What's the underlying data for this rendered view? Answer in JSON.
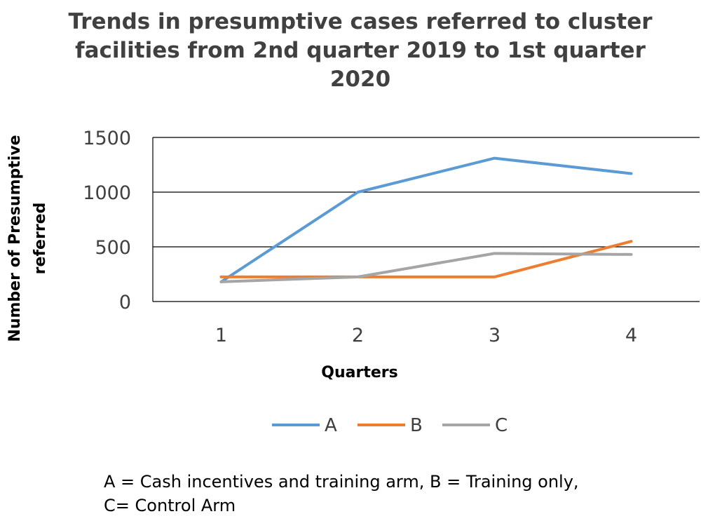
{
  "colors": {
    "A": "#5b9bd5",
    "B": "#ed7d31",
    "C": "#a5a5a5",
    "grid": "#000000",
    "text": "#404040"
  },
  "chart_data": {
    "type": "line",
    "title_lines": [
      "Trends in presumptive cases referred to cluster",
      "facilities from 2nd quarter 2019 to 1st quarter",
      "2020"
    ],
    "xlabel": "Quarters",
    "ylabel_lines": [
      "Number of Presumptive",
      "referred"
    ],
    "categories": [
      "1",
      "2",
      "3",
      "4"
    ],
    "y_ticks": [
      "0",
      "500",
      "1000",
      "1500"
    ],
    "ylim": [
      0,
      1500
    ],
    "grid": true,
    "legend_position": "bottom",
    "series": [
      {
        "name": "A",
        "values": [
          180,
          1000,
          1310,
          1170
        ]
      },
      {
        "name": "B",
        "values": [
          225,
          225,
          225,
          550
        ]
      },
      {
        "name": "C",
        "values": [
          180,
          225,
          440,
          430
        ]
      }
    ]
  },
  "footnote": {
    "line1": "A = Cash incentives and training arm, B = Training only,",
    "line2": "C= Control Arm"
  }
}
